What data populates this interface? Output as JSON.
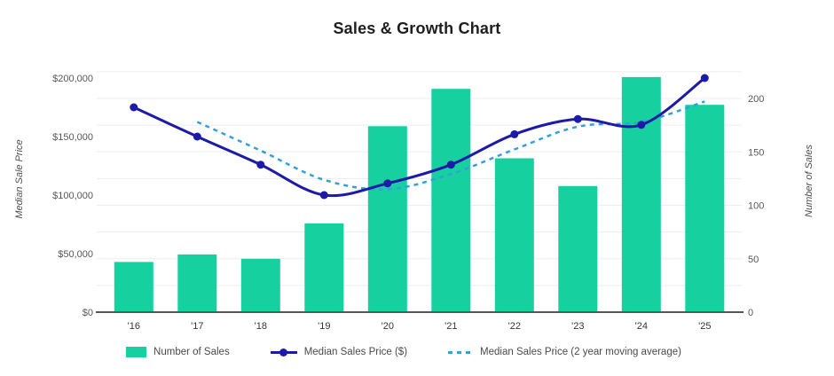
{
  "chart_data": {
    "type": "combo",
    "title": "Sales & Growth Chart",
    "categories": [
      "'16",
      "'17",
      "'18",
      "'19",
      "'20",
      "'21",
      "'22",
      "'23",
      "'24",
      "'25"
    ],
    "series": [
      {
        "name": "Number of Sales",
        "type": "bar",
        "axis": "right",
        "color": "#17d0a0",
        "values": [
          47,
          54,
          50,
          83,
          174,
          209,
          144,
          118,
          220,
          194
        ]
      },
      {
        "name": "Median Sales Price ($)",
        "type": "line",
        "axis": "left",
        "color": "#1c1aa6",
        "values": [
          175000,
          150000,
          126000,
          100000,
          110000,
          126000,
          152000,
          165000,
          160000,
          200000
        ]
      },
      {
        "name": "Median Sales Price (2 year moving average)",
        "type": "dashed-line",
        "axis": "left",
        "color": "#33a0db",
        "values": [
          null,
          162500,
          138000,
          113000,
          105000,
          118000,
          139000,
          158500,
          162500,
          180000
        ]
      }
    ],
    "left_axis": {
      "title": "Median Sale Price",
      "range": [
        0,
        205000
      ],
      "ticks": [
        {
          "value": 0,
          "label": "$0"
        },
        {
          "value": 50000,
          "label": "$50,000"
        },
        {
          "value": 100000,
          "label": "$100,000"
        },
        {
          "value": 150000,
          "label": "$150,000"
        },
        {
          "value": 200000,
          "label": "$200,000"
        }
      ]
    },
    "right_axis": {
      "title": "Number of Sales",
      "range": [
        0,
        225
      ],
      "ticks": [
        {
          "value": 0,
          "label": "0"
        },
        {
          "value": 50,
          "label": "50"
        },
        {
          "value": 100,
          "label": "100"
        },
        {
          "value": 150,
          "label": "150"
        },
        {
          "value": 200,
          "label": "200"
        }
      ]
    },
    "grid": {
      "color": "#ededed",
      "baseline_color": "#555555",
      "right_axis_step": 25
    },
    "legend": {
      "position": "bottom",
      "items": [
        {
          "label": "Number of Sales",
          "swatch": "box",
          "color": "#17d0a0"
        },
        {
          "label": "Median Sales Price ($)",
          "swatch": "line-dot",
          "color": "#1c1aa6"
        },
        {
          "label": "Median Sales Price (2 year moving average)",
          "swatch": "dashes",
          "color": "#33a0db"
        }
      ]
    }
  }
}
